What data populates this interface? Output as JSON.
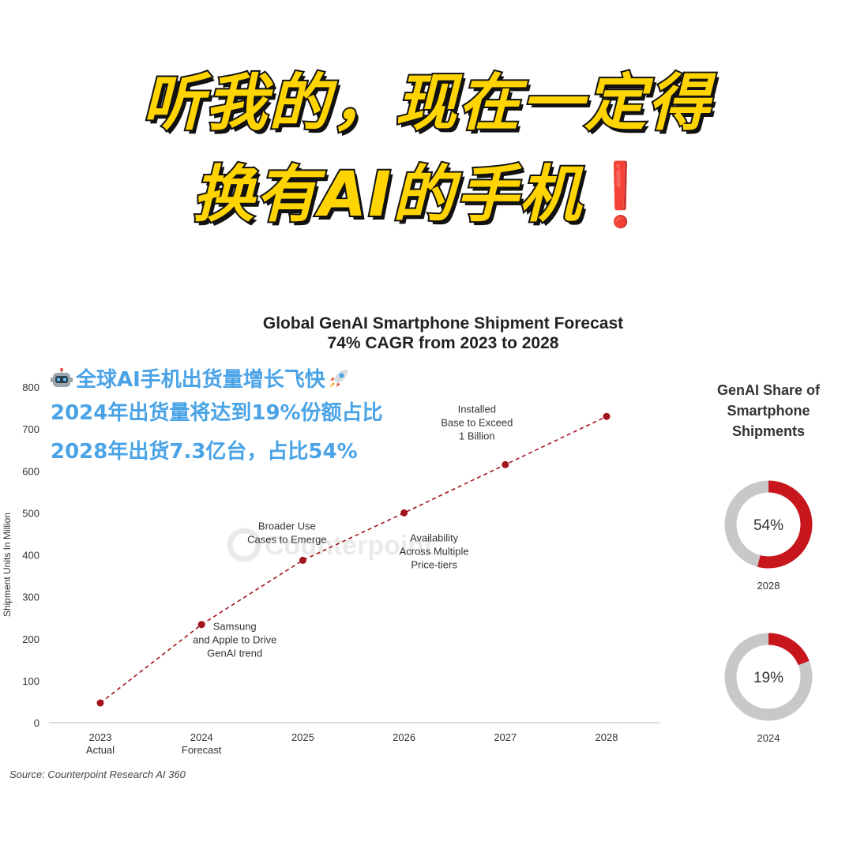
{
  "headline": {
    "line1": "听我的，现在一定得",
    "line2": "换有AI的手机",
    "exclamation": "❗"
  },
  "overlay": {
    "line1": "全球AI手机出货量增长飞快",
    "line2": "2024年出货量将达到19%份额占比",
    "line3": "2028年出货7.3亿台，占比54%",
    "icons": [
      "robot-icon",
      "rocket-icon"
    ]
  },
  "colors": {
    "headline_fill": "#ffd400",
    "headline_outline": "#111111",
    "overlay_text": "#4aa3e6",
    "series": "#a3141e",
    "donut_share": "#c8161d",
    "donut_rest": "#c8c8c8"
  },
  "watermark": "Counterpoint",
  "source": "Source: Counterpoint Research AI 360",
  "chart_data": [
    {
      "type": "line",
      "title": "Global GenAI Smartphone Shipment Forecast",
      "subtitle": "74% CAGR from 2023 to 2028",
      "ylabel": "Shipment Units In Million",
      "ylim": [
        0,
        800
      ],
      "yticks": [
        0,
        100,
        200,
        300,
        400,
        500,
        600,
        700,
        800
      ],
      "grid": false,
      "line_style": "dashed",
      "categories": [
        {
          "label": "2023",
          "sublabel": "Actual"
        },
        {
          "label": "2024",
          "sublabel": "Forecast"
        },
        {
          "label": "2025",
          "sublabel": ""
        },
        {
          "label": "2026",
          "sublabel": ""
        },
        {
          "label": "2027",
          "sublabel": ""
        },
        {
          "label": "2028",
          "sublabel": ""
        }
      ],
      "values": [
        47,
        234,
        387,
        500,
        615,
        730
      ],
      "annotations": [
        {
          "point": 1,
          "lines": [
            "Samsung",
            "and Apple to Drive",
            "GenAI trend"
          ]
        },
        {
          "point": 2,
          "lines": [
            "Broader Use",
            "Cases to Emerge"
          ]
        },
        {
          "point": 3,
          "lines": [
            "Availability",
            "Across Multiple",
            "Price-tiers"
          ]
        },
        {
          "point": 4,
          "lines": [
            "Installed",
            "Base to Exceed",
            "1 Billion"
          ]
        }
      ]
    },
    {
      "type": "pie",
      "title_lines": [
        "GenAI Share of",
        "Smartphone",
        "Shipments"
      ],
      "donuts": [
        {
          "year": "2028",
          "share": 54,
          "label": "54%"
        },
        {
          "year": "2024",
          "share": 19,
          "label": "19%"
        }
      ]
    }
  ]
}
